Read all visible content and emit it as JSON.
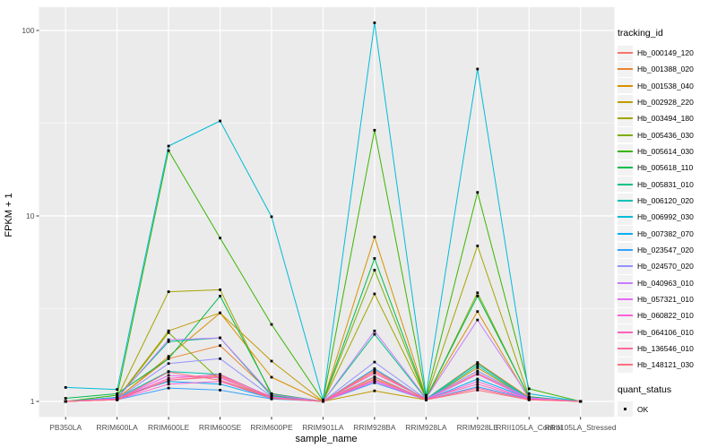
{
  "chart_data": {
    "type": "line",
    "title": "",
    "xlabel": "sample_name",
    "ylabel": "FPKM + 1",
    "y_scale": "log10",
    "y_ticks": [
      "1",
      "10",
      "100"
    ],
    "y_minor_ticks": [
      3.1623,
      31.623
    ],
    "ylim": [
      0.83,
      130
    ],
    "grid": true,
    "legend_position": "right",
    "categories": [
      "PB350LA",
      "RRIM600LA",
      "RRIM600LE",
      "RRIM600SE",
      "RRIM600PE",
      "RRIM901LA",
      "RRIM928BA",
      "RRIM928LA",
      "RRIM928LE",
      "RRII105LA_Control",
      "RRII105LA_Stressed"
    ],
    "series": [
      {
        "name": "Hb_000149_120",
        "color": "#F8766D",
        "values": [
          1.0,
          1.03,
          1.3,
          1.38,
          1.06,
          1.0,
          1.45,
          1.03,
          1.42,
          1.04,
          1.0
        ]
      },
      {
        "name": "Hb_001388_020",
        "color": "#EA8331",
        "values": [
          1.0,
          1.04,
          1.7,
          2.0,
          1.1,
          1.0,
          1.32,
          1.03,
          1.62,
          1.05,
          1.0
        ]
      },
      {
        "name": "Hb_001538_040",
        "color": "#D89000",
        "values": [
          1.0,
          1.03,
          1.75,
          3.0,
          1.35,
          1.0,
          7.7,
          1.05,
          3.05,
          1.03,
          1.0
        ]
      },
      {
        "name": "Hb_002928_220",
        "color": "#C09B00",
        "values": [
          1.0,
          1.04,
          2.4,
          3.0,
          1.65,
          1.0,
          1.14,
          1.02,
          1.52,
          1.03,
          1.0
        ]
      },
      {
        "name": "Hb_003494_180",
        "color": "#A3A500",
        "values": [
          1.0,
          1.05,
          3.9,
          4.0,
          1.08,
          1.0,
          3.8,
          1.04,
          6.9,
          1.06,
          1.0
        ]
      },
      {
        "name": "Hb_005436_030",
        "color": "#7CAE00",
        "values": [
          1.0,
          1.03,
          2.35,
          1.3,
          1.05,
          1.0,
          5.1,
          1.03,
          3.85,
          1.05,
          1.0
        ]
      },
      {
        "name": "Hb_005614_030",
        "color": "#39B600",
        "values": [
          1.0,
          1.08,
          22.5,
          7.6,
          2.6,
          1.01,
          29.0,
          1.05,
          13.4,
          1.17,
          1.0
        ]
      },
      {
        "name": "Hb_005618_110",
        "color": "#00BB4E",
        "values": [
          1.04,
          1.1,
          1.7,
          3.7,
          1.1,
          1.0,
          5.9,
          1.04,
          3.7,
          1.06,
          1.0
        ]
      },
      {
        "name": "Hb_005831_010",
        "color": "#00C087",
        "values": [
          1.0,
          1.05,
          2.1,
          2.2,
          1.07,
          1.0,
          2.3,
          1.03,
          1.6,
          1.04,
          1.0
        ]
      },
      {
        "name": "Hb_006120_020",
        "color": "#00C0B8",
        "values": [
          1.0,
          1.04,
          1.45,
          1.4,
          1.05,
          1.0,
          1.36,
          1.02,
          1.56,
          1.03,
          1.0
        ]
      },
      {
        "name": "Hb_006992_030",
        "color": "#00BCD8",
        "values": [
          1.19,
          1.16,
          23.8,
          32.5,
          9.9,
          1.02,
          110.0,
          1.08,
          62.0,
          1.1,
          1.0
        ]
      },
      {
        "name": "Hb_007382_070",
        "color": "#00B0F6",
        "values": [
          1.0,
          1.05,
          1.28,
          1.24,
          1.04,
          1.0,
          1.5,
          1.02,
          1.32,
          1.04,
          1.0
        ]
      },
      {
        "name": "Hb_023547_020",
        "color": "#35A2FF",
        "values": [
          1.0,
          1.02,
          1.18,
          1.15,
          1.03,
          1.0,
          1.26,
          1.02,
          1.2,
          1.03,
          1.0
        ]
      },
      {
        "name": "Hb_024570_020",
        "color": "#9590FF",
        "values": [
          1.0,
          1.03,
          1.6,
          1.7,
          1.06,
          1.0,
          1.63,
          1.03,
          1.46,
          1.04,
          1.0
        ]
      },
      {
        "name": "Hb_040963_010",
        "color": "#C77CFF",
        "values": [
          1.0,
          1.04,
          2.15,
          2.2,
          1.09,
          1.0,
          2.4,
          1.04,
          2.75,
          1.05,
          1.0
        ]
      },
      {
        "name": "Hb_057321_010",
        "color": "#E76BF3",
        "values": [
          1.0,
          1.03,
          1.38,
          1.34,
          1.05,
          1.0,
          1.3,
          1.02,
          1.4,
          1.03,
          1.0
        ]
      },
      {
        "name": "Hb_060822_010",
        "color": "#FB61D7",
        "values": [
          1.0,
          1.02,
          1.24,
          1.28,
          1.04,
          1.0,
          1.28,
          1.02,
          1.28,
          1.03,
          1.0
        ]
      },
      {
        "name": "Hb_064106_010",
        "color": "#FF62BC",
        "values": [
          1.0,
          1.03,
          1.33,
          1.4,
          1.05,
          1.0,
          1.42,
          1.03,
          1.24,
          1.03,
          1.0
        ]
      },
      {
        "name": "Hb_136546_010",
        "color": "#FF6A98",
        "values": [
          1.0,
          1.02,
          1.3,
          1.36,
          1.04,
          1.0,
          1.35,
          1.02,
          1.18,
          1.02,
          1.0
        ]
      },
      {
        "name": "Hb_148121_030",
        "color": "#FC717F",
        "values": [
          1.0,
          1.02,
          1.44,
          1.3,
          1.04,
          1.0,
          1.48,
          1.02,
          1.15,
          1.02,
          1.0
        ]
      }
    ],
    "legend": {
      "series_title": "tracking_id",
      "shape_title": "quant_status",
      "shape_items": [
        "OK"
      ],
      "point_shape": "filled-square",
      "point_color": "#000000"
    },
    "colors": {
      "panel_bg": "#EBEBEB",
      "grid": "#FFFFFF",
      "tick_mark": "#333333",
      "tick_text": "#4D4D4D",
      "axis_title": "#000000",
      "legend_key_bg": "#F2F2F2"
    }
  }
}
